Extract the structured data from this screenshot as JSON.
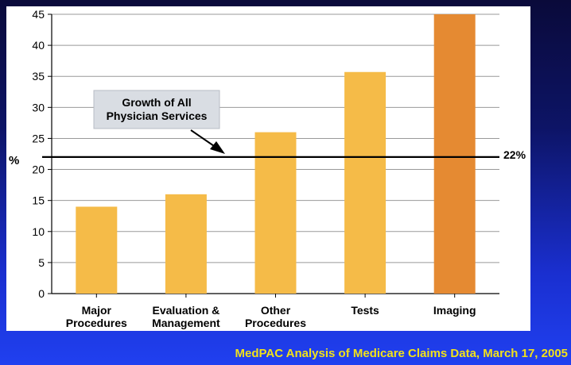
{
  "chart_data": {
    "type": "bar",
    "categories": [
      [
        "Major",
        "Procedures"
      ],
      [
        "Evaluation &",
        "Management"
      ],
      [
        "Other",
        "Procedures"
      ],
      [
        "Tests"
      ],
      [
        "Imaging"
      ]
    ],
    "values": [
      14,
      16,
      26,
      35.7,
      45
    ],
    "bar_colors": [
      "#f5bb48",
      "#f5bb48",
      "#f5bb48",
      "#f5bb48",
      "#e58a32"
    ],
    "ylabel": "%",
    "ylim": [
      0,
      45
    ],
    "yticks": [
      0,
      5,
      10,
      15,
      20,
      25,
      30,
      35,
      40,
      45
    ],
    "grid": true,
    "reference_line": {
      "value": 22,
      "label": "22%",
      "annotation": [
        "Growth of All",
        "Physician Services"
      ]
    }
  },
  "caption": "MedPAC Analysis of Medicare Claims Data, March 17, 2005",
  "colors": {
    "caption": "#f2e21a",
    "grid": "#999999",
    "annotation_box": "#d9dde3"
  }
}
